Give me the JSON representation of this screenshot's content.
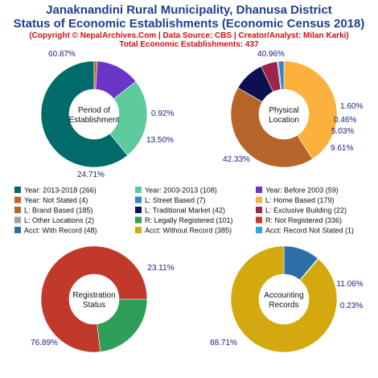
{
  "header": {
    "title_line1": "Janaknandini Rural Municipality, Dhanusa District",
    "title_line2": "Status of Economic Establishments (Economic Census 2018)",
    "subtitle": "(Copyright © NepalArchives.Com | Data Source: CBS | Creator/Analyst: Milan Karki)",
    "total": "Total Economic Establishments: 437"
  },
  "chart_data": [
    {
      "type": "pie",
      "center_label": [
        "Period of",
        "Establishment"
      ],
      "slices": [
        {
          "legend": "Year: 2013-2018 (266)",
          "value": 266,
          "percent": "60.87%",
          "color": "#006b68"
        },
        {
          "legend": "Year: 2003-2013 (108)",
          "value": 108,
          "percent": "24.71%",
          "color": "#5ec99b"
        },
        {
          "legend": "Year: Before 2003 (59)",
          "value": 59,
          "percent": "13.50%",
          "color": "#6b35c8"
        },
        {
          "legend": "Year: Not Stated (4)",
          "value": 4,
          "percent": "0.92%",
          "color": "#c4622d"
        }
      ]
    },
    {
      "type": "pie",
      "center_label": [
        "Physical",
        "Location"
      ],
      "slices": [
        {
          "legend": "L: Home Based (179)",
          "value": 179,
          "percent": "40.96%",
          "color": "#fbb13c"
        },
        {
          "legend": "L: Brand Based (185)",
          "value": 185,
          "percent": "42.33%",
          "color": "#b5652a"
        },
        {
          "legend": "L: Traditional Market (42)",
          "value": 42,
          "percent": "9.61%",
          "color": "#0d0f4f"
        },
        {
          "legend": "L: Exclusive Building (22)",
          "value": 22,
          "percent": "5.03%",
          "color": "#a0234d"
        },
        {
          "legend": "L: Other Locations (2)",
          "value": 2,
          "percent": "0.46%",
          "color": "#9aa0a6"
        },
        {
          "legend": "L: Street Based (7)",
          "value": 7,
          "percent": "1.60%",
          "color": "#2f86c8"
        }
      ]
    },
    {
      "type": "pie",
      "center_label": [
        "Registration",
        "Status"
      ],
      "slices": [
        {
          "legend": "R: Legally Registered (101)",
          "value": 101,
          "percent": "23.11%",
          "color": "#2e9e58"
        },
        {
          "legend": "R: Not Registered (336)",
          "value": 336,
          "percent": "76.89%",
          "color": "#c0392b"
        }
      ]
    },
    {
      "type": "pie",
      "center_label": [
        "Accounting",
        "Records"
      ],
      "slices": [
        {
          "legend": "Acct: With Record (48)",
          "value": 48,
          "percent": "11.06%",
          "color": "#2f6fa8"
        },
        {
          "legend": "Acct: Record Not Stated (1)",
          "value": 1,
          "percent": "0.23%",
          "color": "#29a8d8"
        },
        {
          "legend": "Acct: Without Record (385)",
          "value": 385,
          "percent": "88.71%",
          "color": "#d4a90f"
        }
      ]
    }
  ],
  "legend": [
    [
      "Year: 2013-2018 (266)",
      "Year: 2003-2013 (108)",
      "Year: Before 2003 (59)"
    ],
    [
      "Year: Not Stated (4)",
      "L: Street Based (7)",
      "L: Home Based (179)"
    ],
    [
      "L: Brand Based (185)",
      "L: Traditional Market (42)",
      "L: Exclusive Building (22)"
    ],
    [
      "L: Other Locations (2)",
      "R: Legally Registered (101)",
      "R: Not Registered (336)"
    ],
    [
      "Acct: With Record (48)",
      "Acct: Without Record (385)",
      "Acct: Record Not Stated (1)"
    ]
  ],
  "legend_colors": [
    [
      "#006b68",
      "#5ec99b",
      "#6b35c8"
    ],
    [
      "#c4622d",
      "#2f86c8",
      "#fbb13c"
    ],
    [
      "#b5652a",
      "#0d0f4f",
      "#a0234d"
    ],
    [
      "#9aa0a6",
      "#2e9e58",
      "#c0392b"
    ],
    [
      "#2f6fa8",
      "#d4a90f",
      "#29a8d8"
    ]
  ]
}
